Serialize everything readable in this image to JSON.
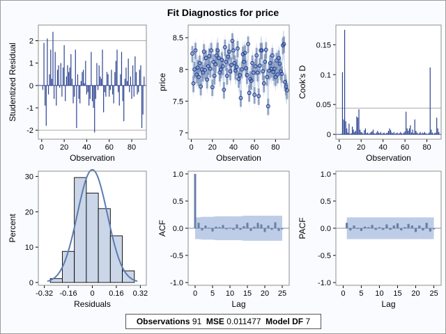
{
  "title": "Fit Diagnostics for price",
  "stats": {
    "obs_label": "Observations",
    "obs_value": "91",
    "mse_label": "MSE",
    "mse_value": "0.011477",
    "df_label": "Model DF",
    "df_value": "7"
  },
  "colors": {
    "bar": "#2a4290",
    "fill_band": "#b3c4e3",
    "hist_fill": "#cbd6e8",
    "curve": "#5b7cb0",
    "acf_bar": "#6a7fa6",
    "refline": "#a9a9a9"
  },
  "chart_data": [
    {
      "type": "bar",
      "name": "studentized-residual",
      "xlabel": "Observation",
      "ylabel": "Studentized Residual",
      "xlim": [
        -3,
        93
      ],
      "ylim": [
        -2.4,
        2.7
      ],
      "xticks": [
        0,
        20,
        40,
        60,
        80
      ],
      "yticks": [
        -2,
        -1,
        0,
        1,
        2
      ],
      "reflines": [
        -2,
        2
      ],
      "values": [
        -0.2,
        1.9,
        -0.9,
        -1.8,
        2.1,
        -0.4,
        0.5,
        1.6,
        0.3,
        2.4,
        -0.6,
        1.5,
        -0.9,
        0.7,
        0.9,
        -0.1,
        1.0,
        -0.5,
        0.8,
        1.8,
        -0.7,
        0.4,
        0.9,
        0.6,
        0.8,
        1.4,
        0.3,
        -0.8,
        -0.5,
        1.6,
        -1.9,
        0.5,
        -0.6,
        -0.8,
        0.2,
        0.6,
        0.7,
        0.1,
        1.1,
        -0.4,
        -0.3,
        -0.9,
        -0.6,
        1.5,
        -0.7,
        -1.0,
        -2.1,
        -0.6,
        1.0,
        -0.2,
        0.9,
        0.4,
        0.3,
        1.6,
        -1.2,
        -0.3,
        -0.5,
        0.6,
        0.5,
        -0.5,
        -0.2,
        0.7,
        -0.4,
        -0.8,
        0.6,
        1.1,
        1.6,
        -0.3,
        -0.9,
        0.5,
        1.5,
        -0.7,
        -1.6,
        0.3,
        0.8,
        0.2,
        1.2,
        -0.3,
        0.4,
        -0.6,
        0.9,
        -0.5,
        1.3,
        0.6,
        -0.4,
        -0.3,
        0.7,
        0.9,
        -1.9,
        -1.3,
        0.4
      ]
    },
    {
      "type": "scatter",
      "name": "price-vs-observation",
      "xlabel": "Observation",
      "ylabel": "price",
      "xlim": [
        -3,
        93
      ],
      "ylim": [
        6.9,
        8.7
      ],
      "xticks": [
        0,
        20,
        40,
        60,
        80
      ],
      "yticks": [
        7.0,
        7.5,
        8.0,
        8.5
      ],
      "values": [
        8.25,
        7.78,
        8.0,
        8.3,
        7.92,
        8.03,
        7.88,
        8.1,
        7.73,
        8.0,
        7.95,
        8.28,
        7.99,
        8.18,
        7.84,
        8.05,
        8.21,
        8.01,
        8.3,
        7.72,
        8.12,
        7.9,
        8.08,
        8.22,
        8.3,
        8.18,
        7.95,
        8.0,
        8.15,
        8.05,
        7.68,
        8.35,
        8.12,
        7.9,
        8.2,
        8.28,
        7.97,
        8.07,
        8.45,
        8.3,
        8.1,
        7.98,
        8.04,
        8.33,
        7.85,
        7.91,
        7.55,
        8.0,
        8.24,
        8.12,
        8.26,
        8.02,
        7.91,
        8.4,
        7.63,
        7.85,
        7.82,
        8.1,
        7.95,
        7.6,
        8.05,
        8.22,
        7.95,
        7.58,
        8.06,
        8.3,
        8.3,
        7.97,
        7.78,
        8.12,
        8.31,
        7.88,
        7.42,
        7.98,
        8.1,
        8.01,
        8.22,
        7.96,
        8.01,
        7.88,
        8.14,
        7.92,
        8.18,
        8.09,
        7.97,
        7.93,
        8.38,
        8.4,
        7.8,
        7.73,
        7.67
      ]
    },
    {
      "type": "bar",
      "name": "cooks-d",
      "xlabel": "Observation",
      "ylabel": "Cook's D",
      "xlim": [
        -3,
        93
      ],
      "ylim": [
        -0.008,
        0.183
      ],
      "xticks": [
        0,
        20,
        40,
        60,
        80
      ],
      "yticks": [
        0.0,
        0.05,
        0.1,
        0.15
      ],
      "reflines": [
        0.044
      ],
      "values": [
        0.0,
        0.001,
        0.104,
        0.025,
        0.175,
        0.022,
        0.01,
        0.003,
        0.018,
        0.001,
        0.002,
        0.013,
        0.008,
        0.004,
        0.006,
        0.03,
        0.028,
        0.042,
        0.008,
        0.004,
        0.003,
        0.001,
        0.007,
        0.01,
        0.002,
        0.003,
        0.001,
        0.002,
        0.004,
        0.005,
        0.008,
        0.002,
        0.001,
        0.003,
        0.006,
        0.003,
        0.002,
        0.004,
        0.001,
        0.002,
        0.003,
        0.001,
        0.002,
        0.003,
        0.006,
        0.01,
        0.007,
        0.003,
        0.002,
        0.004,
        0.001,
        0.002,
        0.003,
        0.001,
        0.002,
        0.004,
        0.002,
        0.001,
        0.003,
        0.005,
        0.038,
        0.01,
        0.006,
        0.01,
        0.015,
        0.003,
        0.008,
        0.002,
        0.025,
        0.006,
        0.003,
        0.001,
        0.002,
        0.004,
        0.001,
        0.003,
        0.002,
        0.004,
        0.002,
        0.001,
        0.001,
        0.003,
        0.112,
        0.008,
        0.003,
        0.001,
        0.002,
        0.003,
        0.028,
        0.01,
        0.004
      ]
    },
    {
      "type": "histogram",
      "name": "residual-distribution",
      "xlabel": "Residuals",
      "ylabel": "Percent",
      "xlim": [
        -0.36,
        0.36
      ],
      "ylim": [
        -0.8,
        31.5
      ],
      "xticks": [
        -0.32,
        -0.16,
        0,
        0.16,
        0.32
      ],
      "xtick_labels": [
        "-0.32",
        "-0.16",
        "0",
        "0.16",
        "0.32"
      ],
      "yticks": [
        0,
        10,
        20,
        30
      ],
      "bin_edges": [
        -0.28,
        -0.2,
        -0.12,
        -0.04,
        0.04,
        0.12,
        0.2,
        0.28
      ],
      "values": [
        1.1,
        8.8,
        29.7,
        25.3,
        20.9,
        13.2,
        3.3
      ],
      "normal_curve": {
        "mean": 0.0,
        "sd": 0.1
      }
    },
    {
      "type": "bar",
      "name": "acf",
      "xlabel": "Lag",
      "ylabel": "ACF",
      "xlim": [
        -2,
        27
      ],
      "ylim": [
        -1.05,
        1.05
      ],
      "xticks": [
        0,
        5,
        10,
        15,
        20,
        25
      ],
      "yticks": [
        -1.0,
        -0.5,
        0.0,
        0.5,
        1.0
      ],
      "yticks_fmt": 1,
      "values": [
        1.0,
        0.1,
        -0.04,
        0.05,
        0.01,
        -0.06,
        0.03,
        0.02,
        0.06,
        -0.02,
        0.01,
        -0.03,
        0.07,
        -0.03,
        0.04,
        0.1,
        -0.05,
        0.03,
        0.1,
        0.07,
        -0.07,
        0.05,
        -0.03,
        0.11,
        -0.05,
        -0.02
      ],
      "band_upper": [
        0.2,
        0.2,
        0.21,
        0.21,
        0.21,
        0.21,
        0.22,
        0.22,
        0.22,
        0.22,
        0.22,
        0.22,
        0.22,
        0.22,
        0.23,
        0.23,
        0.23,
        0.23,
        0.23,
        0.23,
        0.23,
        0.23,
        0.23,
        0.23,
        0.23,
        0.23
      ]
    },
    {
      "type": "bar",
      "name": "pacf",
      "xlabel": "Lag",
      "ylabel": "PACF",
      "xlim": [
        -2,
        27
      ],
      "ylim": [
        -1.05,
        1.05
      ],
      "xticks": [
        0,
        5,
        10,
        15,
        20,
        25
      ],
      "yticks": [
        -1.0,
        -0.5,
        0.0,
        0.5,
        1.0
      ],
      "yticks_fmt": 1,
      "lag_start": 1,
      "values": [
        0.1,
        -0.04,
        0.05,
        -0.01,
        -0.05,
        0.03,
        0.02,
        0.06,
        -0.03,
        0.02,
        -0.03,
        0.07,
        -0.03,
        0.05,
        0.09,
        -0.04,
        0.02,
        0.08,
        0.05,
        -0.07,
        0.05,
        -0.04,
        0.1,
        -0.06,
        -0.02
      ],
      "band_upper": [
        0.2,
        0.2,
        0.2,
        0.2,
        0.2,
        0.2,
        0.2,
        0.2,
        0.2,
        0.2,
        0.2,
        0.2,
        0.2,
        0.2,
        0.2,
        0.2,
        0.2,
        0.2,
        0.2,
        0.2,
        0.2,
        0.2,
        0.2,
        0.2,
        0.2
      ]
    }
  ]
}
